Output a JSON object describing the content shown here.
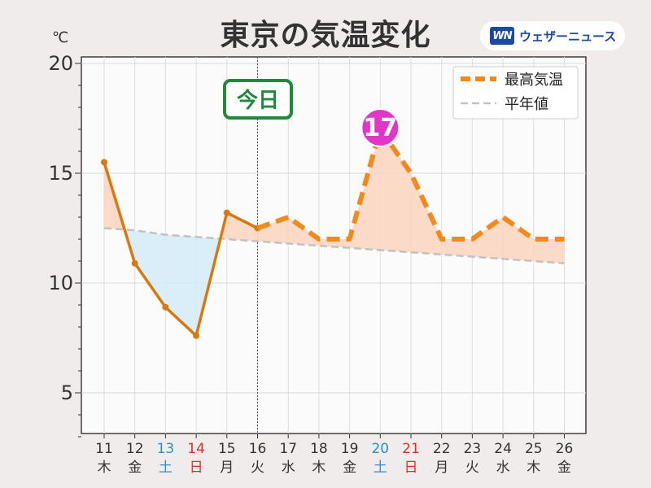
{
  "title": "東京の気温変化",
  "unit": "℃",
  "brand": {
    "logo": "WN",
    "name": "ウェザーニュース"
  },
  "colors": {
    "forecast_line": "#f08a1e",
    "observed_line": "#d87810",
    "normal_line": "#c2c2c2",
    "above_fill": "#fbd6c2",
    "below_fill": "#d6ecf8",
    "peak_badge": "#e236c8",
    "today_badge": "#1f8a3a",
    "saturday": "#2a8fd8",
    "sunday": "#d8302a",
    "weekday": "#333333"
  },
  "chart_data": {
    "type": "line",
    "title": "東京の気温変化",
    "ylabel": "℃",
    "ylim": [
      3,
      20
    ],
    "yticks": [
      5,
      10,
      15,
      20
    ],
    "grid": true,
    "legend_position": "top-right",
    "categories": [
      {
        "day": "11",
        "weekday": "木",
        "kind": "weekday"
      },
      {
        "day": "12",
        "weekday": "金",
        "kind": "weekday"
      },
      {
        "day": "13",
        "weekday": "土",
        "kind": "saturday"
      },
      {
        "day": "14",
        "weekday": "日",
        "kind": "sunday"
      },
      {
        "day": "15",
        "weekday": "月",
        "kind": "weekday"
      },
      {
        "day": "16",
        "weekday": "火",
        "kind": "weekday"
      },
      {
        "day": "17",
        "weekday": "水",
        "kind": "weekday"
      },
      {
        "day": "18",
        "weekday": "木",
        "kind": "weekday"
      },
      {
        "day": "19",
        "weekday": "金",
        "kind": "weekday"
      },
      {
        "day": "20",
        "weekday": "土",
        "kind": "saturday"
      },
      {
        "day": "21",
        "weekday": "日",
        "kind": "sunday"
      },
      {
        "day": "22",
        "weekday": "月",
        "kind": "weekday"
      },
      {
        "day": "23",
        "weekday": "火",
        "kind": "weekday"
      },
      {
        "day": "24",
        "weekday": "水",
        "kind": "weekday"
      },
      {
        "day": "25",
        "weekday": "木",
        "kind": "weekday"
      },
      {
        "day": "26",
        "weekday": "金",
        "kind": "weekday"
      }
    ],
    "series": [
      {
        "name": "最高気温",
        "observed": [
          15.5,
          10.9,
          8.9,
          7.6,
          13.2,
          12.5
        ],
        "forecast": [
          12.5,
          13,
          12,
          12,
          17,
          15,
          12,
          12,
          13,
          12,
          12
        ],
        "forecast_start_index": 5
      },
      {
        "name": "平年値",
        "values": [
          12.5,
          12.4,
          12.2,
          12.1,
          12.0,
          11.9,
          11.8,
          11.7,
          11.6,
          11.5,
          11.4,
          11.3,
          11.2,
          11.1,
          11.0,
          10.9
        ]
      }
    ],
    "today_index": 5,
    "today_label": "今日",
    "peak": {
      "index": 9,
      "label": "17"
    }
  }
}
